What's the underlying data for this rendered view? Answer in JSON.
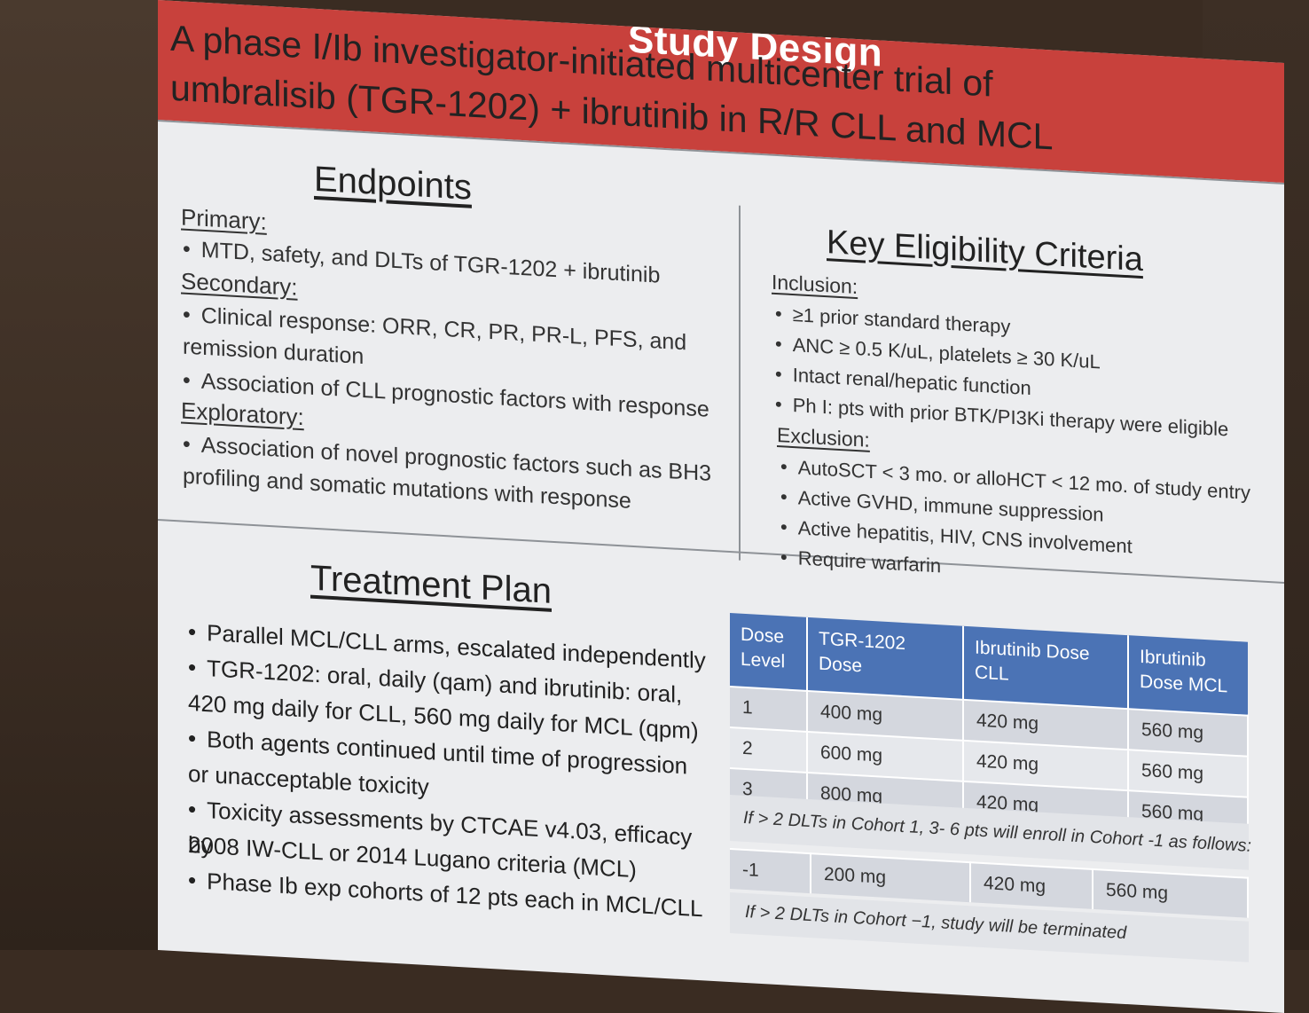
{
  "header": {
    "title": "Study Design"
  },
  "subtitle": {
    "line1": "A phase I/Ib investigator-initiated multicenter trial of",
    "line2": "umbralisib (TGR-1202) + ibrutinib in R/R CLL and MCL"
  },
  "endpoints": {
    "heading": "Endpoints",
    "primary_label": "Primary:",
    "primary_items": [
      "MTD, safety, and DLTs of TGR-1202 + ibrutinib"
    ],
    "secondary_label": "Secondary:",
    "secondary_items": [
      "Clinical response: ORR, CR, PR, PR-L, PFS, and",
      "remission duration",
      "Association of CLL prognostic factors with response"
    ],
    "exploratory_label": "Exploratory:",
    "exploratory_items": [
      "Association of novel prognostic factors such as BH3",
      "profiling and somatic mutations with response"
    ]
  },
  "eligibility": {
    "heading": "Key Eligibility Criteria",
    "inclusion_label": "Inclusion:",
    "inclusion_items": [
      "≥1 prior standard therapy",
      "ANC ≥ 0.5 K/uL, platelets ≥ 30 K/uL",
      "Intact renal/hepatic function",
      "Ph I: pts with prior BTK/PI3Ki therapy were eligible"
    ],
    "exclusion_label": "Exclusion:",
    "exclusion_items": [
      "AutoSCT < 3 mo. or alloHCT < 12 mo. of study entry",
      "Active GVHD, immune suppression",
      "Active hepatitis, HIV, CNS involvement",
      "Require warfarin"
    ]
  },
  "treatment": {
    "heading": "Treatment Plan",
    "items": [
      "Parallel MCL/CLL arms, escalated independently",
      "TGR-1202:  oral, daily (qam) and ibrutinib: oral,",
      "420 mg daily for CLL, 560 mg daily for MCL (qpm)",
      "Both agents continued until time of progression",
      "or unacceptable toxicity",
      "Toxicity assessments by CTCAE v4.03, efficacy by",
      "2008 IW-CLL or 2014 Lugano criteria (MCL)",
      "Phase Ib exp cohorts of 12 pts each in MCL/CLL"
    ]
  },
  "dose_table": {
    "headers": [
      "Dose Level",
      "TGR-1202 Dose",
      "Ibrutinib Dose CLL",
      "Ibrutinib Dose MCL"
    ],
    "rows": [
      [
        "1",
        "400 mg",
        "420 mg",
        "560 mg"
      ],
      [
        "2",
        "600 mg",
        "420 mg",
        "560 mg"
      ],
      [
        "3",
        "800 mg",
        "420 mg",
        "560 mg"
      ]
    ],
    "note1": "If > 2 DLTs in Cohort 1, 3- 6 pts will enroll in Cohort -1 as follows:",
    "extra_row": [
      "-1",
      "200 mg",
      "420 mg",
      "560 mg"
    ],
    "note2": "If > 2 DLTs in Cohort −1, study will be terminated"
  }
}
